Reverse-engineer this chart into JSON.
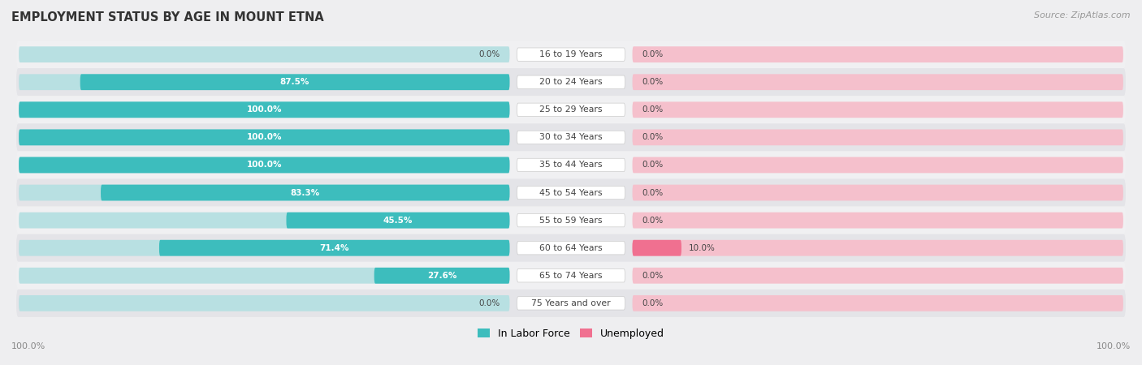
{
  "title": "EMPLOYMENT STATUS BY AGE IN MOUNT ETNA",
  "source": "Source: ZipAtlas.com",
  "categories": [
    "16 to 19 Years",
    "20 to 24 Years",
    "25 to 29 Years",
    "30 to 34 Years",
    "35 to 44 Years",
    "45 to 54 Years",
    "55 to 59 Years",
    "60 to 64 Years",
    "65 to 74 Years",
    "75 Years and over"
  ],
  "labor_force": [
    0.0,
    87.5,
    100.0,
    100.0,
    100.0,
    83.3,
    45.5,
    71.4,
    27.6,
    0.0
  ],
  "unemployed": [
    0.0,
    0.0,
    0.0,
    0.0,
    0.0,
    0.0,
    0.0,
    10.0,
    0.0,
    0.0
  ],
  "labor_force_color": "#3DBDBD",
  "unemployed_color": "#F07090",
  "labor_force_bg": "#B8E0E2",
  "unemployed_bg": "#F5C0CC",
  "row_bg_light": "#F0F0F2",
  "row_bg_dark": "#E4E4E8",
  "fig_bg": "#EEEEF0",
  "label_white": "#FFFFFF",
  "label_dark": "#444444",
  "title_color": "#333333",
  "source_color": "#999999",
  "axis_label_color": "#888888",
  "max_val": 100.0,
  "bar_height": 0.58,
  "label_min_inside": 15.0
}
